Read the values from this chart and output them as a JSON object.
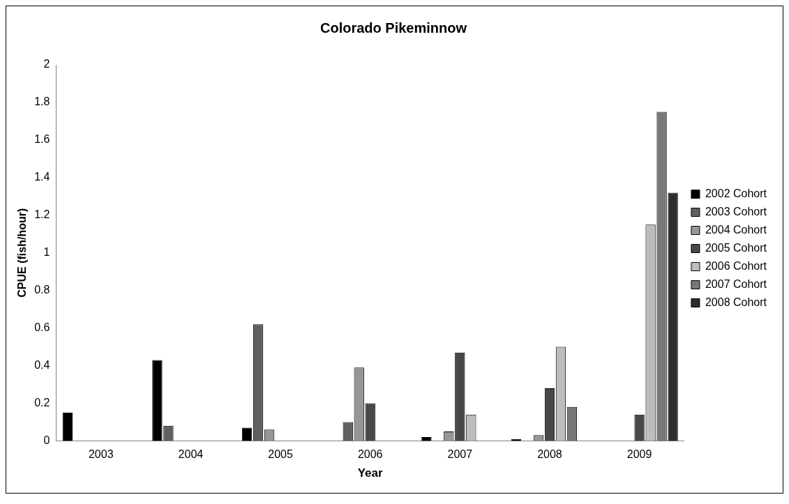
{
  "chart_data": {
    "type": "bar",
    "title": "Colorado Pikeminnow",
    "xlabel": "Year",
    "ylabel": "CPUE (fish/hour)",
    "categories": [
      "2003",
      "2004",
      "2005",
      "2006",
      "2007",
      "2008",
      "2009"
    ],
    "series": [
      {
        "name": "2002 Cohort",
        "color": "#000000",
        "values": [
          0.15,
          0.43,
          0.07,
          null,
          0.02,
          0.01,
          null
        ]
      },
      {
        "name": "2003 Cohort",
        "color": "#606060",
        "values": [
          null,
          0.08,
          0.62,
          0.1,
          null,
          null,
          null
        ]
      },
      {
        "name": "2004 Cohort",
        "color": "#969696",
        "values": [
          null,
          null,
          0.06,
          0.39,
          0.05,
          0.03,
          null
        ]
      },
      {
        "name": "2005 Cohort",
        "color": "#484848",
        "values": [
          null,
          null,
          null,
          0.2,
          0.47,
          0.28,
          0.14
        ]
      },
      {
        "name": "2006 Cohort",
        "color": "#bdbdbd",
        "values": [
          null,
          null,
          null,
          null,
          0.14,
          0.5,
          1.15
        ]
      },
      {
        "name": "2007 Cohort",
        "color": "#787878",
        "values": [
          null,
          null,
          null,
          null,
          null,
          0.18,
          1.75
        ]
      },
      {
        "name": "2008 Cohort",
        "color": "#2c2c2c",
        "values": [
          null,
          null,
          null,
          null,
          null,
          null,
          1.32
        ]
      }
    ],
    "ylim": [
      0,
      2
    ],
    "yticks": [
      0,
      0.2,
      0.4,
      0.6,
      0.8,
      1,
      1.2,
      1.4,
      1.6,
      1.8,
      2
    ],
    "grid": false,
    "legend": "right"
  }
}
